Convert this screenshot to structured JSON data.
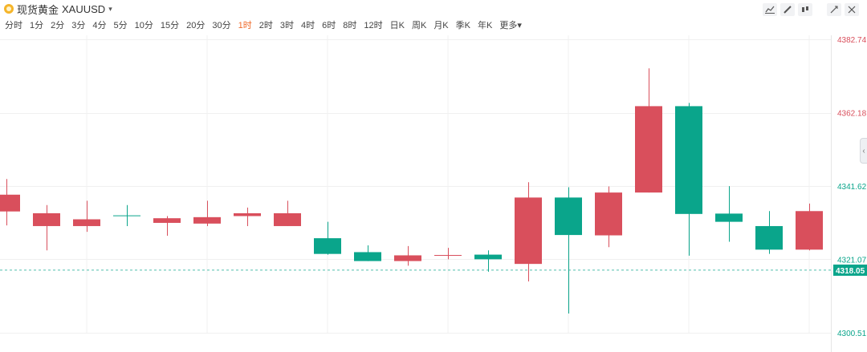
{
  "header": {
    "symbol_name": "现货黄金",
    "symbol_code": "XAUUSD",
    "symbol_caret": "▾"
  },
  "periods": [
    {
      "label": "分时",
      "active": false
    },
    {
      "label": "1分",
      "active": false
    },
    {
      "label": "2分",
      "active": false
    },
    {
      "label": "3分",
      "active": false
    },
    {
      "label": "4分",
      "active": false
    },
    {
      "label": "5分",
      "active": false
    },
    {
      "label": "10分",
      "active": false
    },
    {
      "label": "15分",
      "active": false
    },
    {
      "label": "20分",
      "active": false
    },
    {
      "label": "30分",
      "active": false
    },
    {
      "label": "1时",
      "active": true
    },
    {
      "label": "2时",
      "active": false
    },
    {
      "label": "3时",
      "active": false
    },
    {
      "label": "4时",
      "active": false
    },
    {
      "label": "6时",
      "active": false
    },
    {
      "label": "8时",
      "active": false
    },
    {
      "label": "12时",
      "active": false
    },
    {
      "label": "日K",
      "active": false
    },
    {
      "label": "周K",
      "active": false
    },
    {
      "label": "月K",
      "active": false
    },
    {
      "label": "季K",
      "active": false
    },
    {
      "label": "年K",
      "active": false
    },
    {
      "label": "更多▾",
      "active": false
    }
  ],
  "toolbar": {
    "icons": [
      "line-tool-icon",
      "pen-tool-icon",
      "candle-style-icon",
      "fullscreen-icon",
      "close-icon"
    ]
  },
  "colors": {
    "up": "#d94f5c",
    "down": "#0aa58b",
    "grid": "#f0f0f0",
    "current_price_bg": "#0aa58b"
  },
  "chart_data": {
    "type": "candlestick",
    "y_axis_labels": [
      {
        "value": 4382.74,
        "text": "4382.74",
        "color": "#d94f5c"
      },
      {
        "value": 4362.18,
        "text": "4362.18",
        "color": "#d94f5c"
      },
      {
        "value": 4341.62,
        "text": "4341.62",
        "color": "#0aa58b"
      },
      {
        "value": 4321.07,
        "text": "4321.07",
        "color": "#0aa58b"
      },
      {
        "value": 4300.51,
        "text": "4300.51",
        "color": "#0aa58b"
      }
    ],
    "current_price": 4318.05,
    "current_price_text": "4318.05",
    "candles": [
      {
        "o": 4334.5,
        "h": 4343.6,
        "l": 4330.6,
        "c": 4339.2
      },
      {
        "o": 4330.4,
        "h": 4336.3,
        "l": 4323.6,
        "c": 4334.0
      },
      {
        "o": 4330.4,
        "h": 4337.5,
        "l": 4328.8,
        "c": 4332.3
      },
      {
        "o": 4333.4,
        "h": 4336.3,
        "l": 4330.4,
        "c": 4333.2
      },
      {
        "o": 4331.3,
        "h": 4333.2,
        "l": 4327.7,
        "c": 4332.6
      },
      {
        "o": 4331.1,
        "h": 4337.5,
        "l": 4330.4,
        "c": 4332.9
      },
      {
        "o": 4333.2,
        "h": 4335.6,
        "l": 4330.4,
        "c": 4334.0
      },
      {
        "o": 4330.4,
        "h": 4337.5,
        "l": 4330.4,
        "c": 4334.0
      },
      {
        "o": 4327.0,
        "h": 4331.6,
        "l": 4322.4,
        "c": 4322.6
      },
      {
        "o": 4323.1,
        "h": 4325.0,
        "l": 4320.6,
        "c": 4320.6
      },
      {
        "o": 4320.6,
        "h": 4324.8,
        "l": 4319.3,
        "c": 4322.2
      },
      {
        "o": 4322.1,
        "h": 4324.3,
        "l": 4321.1,
        "c": 4322.3
      },
      {
        "o": 4322.4,
        "h": 4323.6,
        "l": 4317.6,
        "c": 4321.1
      },
      {
        "o": 4319.8,
        "h": 4342.7,
        "l": 4314.9,
        "c": 4338.4
      },
      {
        "o": 4338.4,
        "h": 4341.3,
        "l": 4305.9,
        "c": 4327.9
      },
      {
        "o": 4327.8,
        "h": 4341.5,
        "l": 4324.5,
        "c": 4339.8
      },
      {
        "o": 4339.8,
        "h": 4374.6,
        "l": 4339.8,
        "c": 4364.0
      },
      {
        "o": 4364.0,
        "h": 4364.9,
        "l": 4322.1,
        "c": 4333.8
      },
      {
        "o": 4333.9,
        "h": 4341.6,
        "l": 4326.0,
        "c": 4331.6
      },
      {
        "o": 4330.4,
        "h": 4334.6,
        "l": 4322.6,
        "c": 4323.8
      },
      {
        "o": 4323.8,
        "h": 4336.7,
        "l": 4323.6,
        "c": 4334.6
      }
    ]
  }
}
